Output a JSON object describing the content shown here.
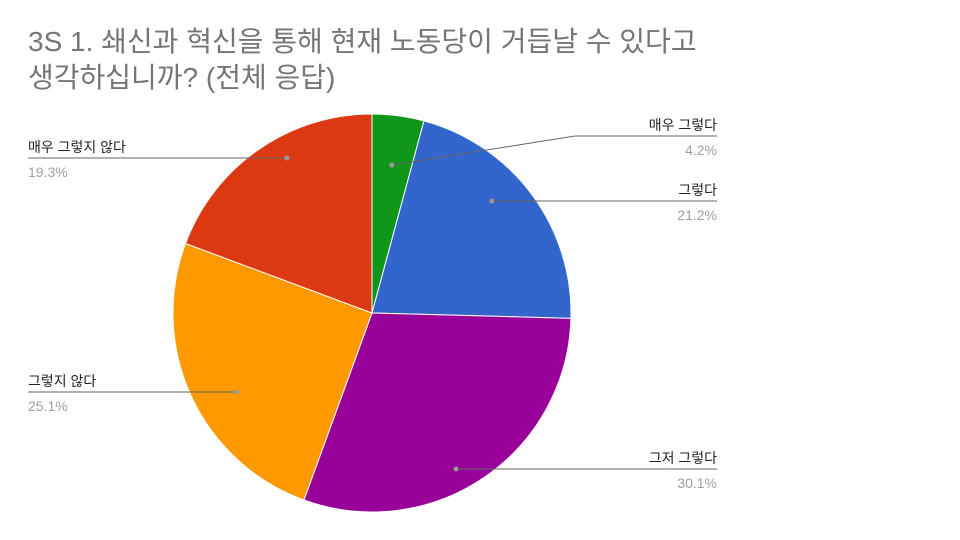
{
  "chart_data": {
    "type": "pie",
    "title": "3S 1. 쇄신과 혁신을 통해 현재 노동당이 거듭날 수 있다고 생각하십니까? (전체 응답)",
    "slices": [
      {
        "label": "매우 그렇다",
        "value": 4.2,
        "value_label": "4.2%",
        "color": "#109618"
      },
      {
        "label": "그렇다",
        "value": 21.2,
        "value_label": "21.2%",
        "color": "#3366cc"
      },
      {
        "label": "그저 그렇다",
        "value": 30.1,
        "value_label": "30.1%",
        "color": "#990099"
      },
      {
        "label": "그렇지 않다",
        "value": 25.1,
        "value_label": "25.1%",
        "color": "#ff9900"
      },
      {
        "label": "매우 그렇지 않다",
        "value": 19.3,
        "value_label": "19.3%",
        "color": "#dc3912"
      }
    ],
    "start_angle": "top",
    "direction": "clockwise",
    "legend": "labels with leader lines"
  }
}
